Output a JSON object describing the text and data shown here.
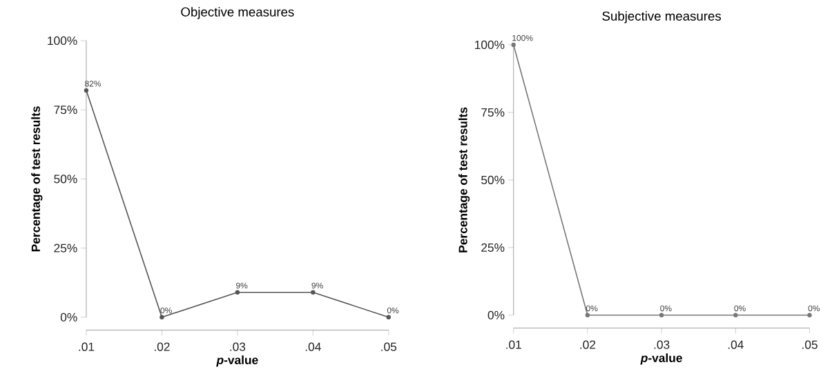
{
  "chart_data": [
    {
      "type": "line",
      "title": "Objective measures",
      "xlabel": "*p*-value",
      "ylabel": "Percentage of test results",
      "x": [
        0.01,
        0.02,
        0.03,
        0.04,
        0.05
      ],
      "values": [
        82,
        0,
        9,
        9,
        0
      ],
      "value_labels": [
        "82%",
        "0%",
        "9%",
        "9%",
        "0%"
      ],
      "color": "#555555",
      "marker": "circle",
      "line_style": "solid",
      "xlim": [
        0.01,
        0.05
      ],
      "ylim": [
        0,
        100
      ],
      "xticks": [
        {
          "value": 0.01,
          "label": ".01"
        },
        {
          "value": 0.02,
          "label": ".02"
        },
        {
          "value": 0.03,
          "label": ".03"
        },
        {
          "value": 0.04,
          "label": ".04"
        },
        {
          "value": 0.05,
          "label": ".05"
        }
      ],
      "yticks": [
        {
          "value": 0,
          "label": "0%"
        },
        {
          "value": 25,
          "label": "25%"
        },
        {
          "value": 50,
          "label": "50%"
        },
        {
          "value": 75,
          "label": "75%"
        },
        {
          "value": 100,
          "label": "100%"
        }
      ]
    },
    {
      "type": "line",
      "title": "Subjective measures",
      "xlabel": "*p*-value",
      "ylabel": "Percentage of test results",
      "x": [
        0.01,
        0.02,
        0.03,
        0.04,
        0.05
      ],
      "values": [
        100,
        0,
        0,
        0,
        0
      ],
      "value_labels": [
        "100%",
        "0%",
        "0%",
        "0%",
        "0%"
      ],
      "color": "#777777",
      "marker": "circle",
      "line_style": "solid",
      "xlim": [
        0.01,
        0.05
      ],
      "ylim": [
        0,
        100
      ],
      "xticks": [
        {
          "value": 0.01,
          "label": ".01"
        },
        {
          "value": 0.02,
          "label": ".02"
        },
        {
          "value": 0.03,
          "label": ".03"
        },
        {
          "value": 0.04,
          "label": ".04"
        },
        {
          "value": 0.05,
          "label": ".05"
        }
      ],
      "yticks": [
        {
          "value": 0,
          "label": "0%"
        },
        {
          "value": 25,
          "label": "25%"
        },
        {
          "value": 50,
          "label": "50%"
        },
        {
          "value": 75,
          "label": "75%"
        },
        {
          "value": 100,
          "label": "100%"
        }
      ]
    }
  ]
}
